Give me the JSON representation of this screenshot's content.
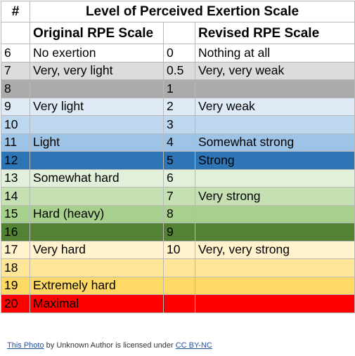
{
  "table": {
    "header_hash": "#",
    "title": "Level of Perceived Exertion Scale",
    "col_original": "Original RPE Scale",
    "col_revised": "Revised RPE Scale",
    "rows": [
      {
        "num": "6",
        "original": "No exertion",
        "rev_num": "0",
        "revised": "Nothing at all",
        "color": "#ffffff"
      },
      {
        "num": "7",
        "original": "Very, very light",
        "rev_num": "0.5",
        "revised": "Very, very weak",
        "color": "#dcdcdc"
      },
      {
        "num": "8",
        "original": "",
        "rev_num": "1",
        "revised": "",
        "color": "#ababab"
      },
      {
        "num": "9",
        "original": "Very light",
        "rev_num": "2",
        "revised": "Very weak",
        "color": "#deebf7"
      },
      {
        "num": "10",
        "original": "",
        "rev_num": "3",
        "revised": "",
        "color": "#bdd7ee"
      },
      {
        "num": "11",
        "original": "Light",
        "rev_num": "4",
        "revised": "Somewhat strong",
        "color": "#9dc3e6"
      },
      {
        "num": "12",
        "original": "",
        "rev_num": "5",
        "revised": "Strong",
        "color": "#2e75b6"
      },
      {
        "num": "13",
        "original": "Somewhat hard",
        "rev_num": "6",
        "revised": "",
        "color": "#e2efd9"
      },
      {
        "num": "14",
        "original": "",
        "rev_num": "7",
        "revised": "Very strong",
        "color": "#c5e0b3"
      },
      {
        "num": "15",
        "original": "Hard (heavy)",
        "rev_num": "8",
        "revised": "",
        "color": "#a8d08d"
      },
      {
        "num": "16",
        "original": "",
        "rev_num": "9",
        "revised": "",
        "color": "#548235"
      },
      {
        "num": "17",
        "original": "Very hard",
        "rev_num": "10",
        "revised": "Very, very strong",
        "color": "#fff2cc"
      },
      {
        "num": "18",
        "original": "",
        "rev_num": "",
        "revised": "",
        "color": "#ffe699"
      },
      {
        "num": "19",
        "original": "Extremely hard",
        "rev_num": "",
        "revised": "",
        "color": "#ffd966"
      },
      {
        "num": "20",
        "original": "Maximal",
        "rev_num": "",
        "revised": "",
        "color": "#ff0000"
      }
    ]
  },
  "attribution": {
    "photo_link": "This Photo",
    "middle_text": " by Unknown Author is licensed under ",
    "license_link": "CC BY-NC"
  }
}
